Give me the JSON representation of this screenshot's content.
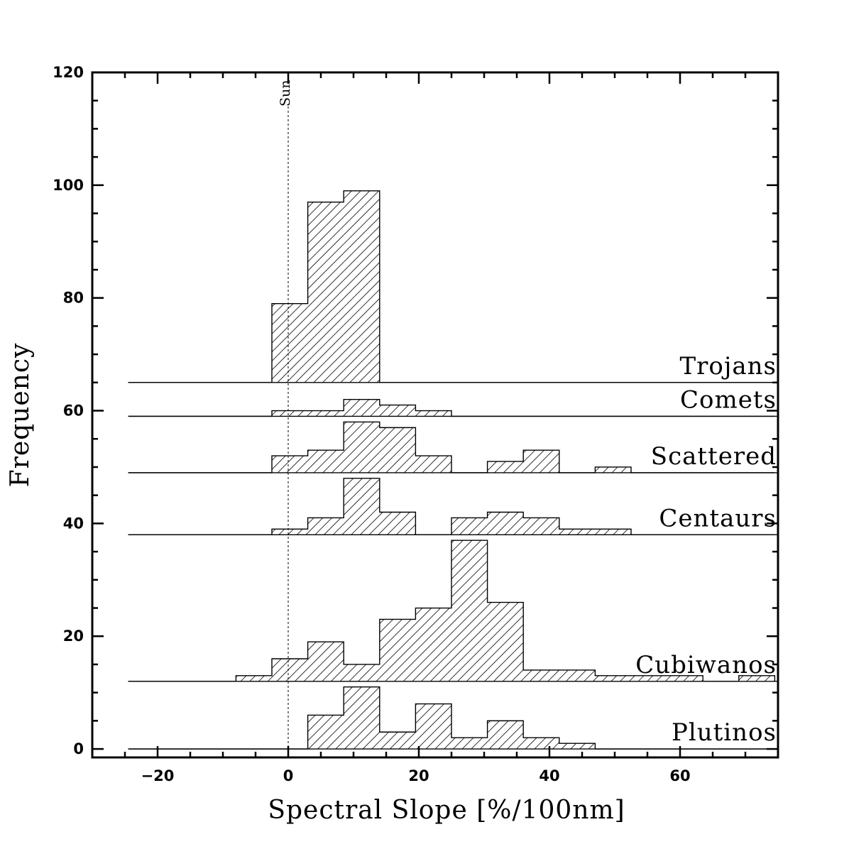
{
  "chart_data": {
    "type": "bar",
    "subtype": "stacked-offset-histogram",
    "xlabel": "Spectral Slope [%/100nm]",
    "ylabel": "Frequency",
    "xlim": [
      -30,
      75
    ],
    "ylim": [
      -1.5,
      120
    ],
    "x_ticks": [
      -20,
      0,
      20,
      40,
      60
    ],
    "y_ticks": [
      0,
      20,
      40,
      60,
      80,
      100,
      120
    ],
    "bin_width": 5.5,
    "x_start": -24.5,
    "grid": false,
    "fill_pattern": "diagonal-hatch",
    "reference_line": {
      "x": 0,
      "label": "Sun",
      "style": "dotted"
    },
    "bin_edges": [
      -24.5,
      -19,
      -13.5,
      -8,
      -2.5,
      3,
      8.5,
      14,
      19.5,
      25,
      30.5,
      36,
      41.5,
      47,
      52.5,
      58,
      63.5,
      69,
      74.5
    ],
    "series": [
      {
        "name": "Trojans",
        "baseline": 65,
        "values": [
          0,
          0,
          0,
          0,
          14,
          32,
          34,
          0,
          0,
          0,
          0,
          0,
          0,
          0,
          0,
          0,
          0,
          0
        ]
      },
      {
        "name": "Comets",
        "baseline": 59,
        "values": [
          0,
          0,
          0,
          0,
          1,
          1,
          3,
          2,
          1,
          0,
          0,
          0,
          0,
          0,
          0,
          0,
          0,
          0
        ]
      },
      {
        "name": "Scattered",
        "baseline": 49,
        "values": [
          0,
          0,
          0,
          0,
          3,
          4,
          9,
          8,
          3,
          0,
          2,
          4,
          0,
          1,
          0,
          0,
          0,
          0
        ]
      },
      {
        "name": "Centaurs",
        "baseline": 38,
        "values": [
          0,
          0,
          0,
          0,
          1,
          3,
          10,
          4,
          0,
          3,
          4,
          3,
          1,
          1,
          0,
          0,
          0,
          0
        ]
      },
      {
        "name": "Cubiwanos",
        "baseline": 12,
        "values": [
          0,
          0,
          0,
          1,
          4,
          7,
          3,
          11,
          13,
          25,
          14,
          2,
          2,
          1,
          1,
          1,
          0,
          1
        ]
      },
      {
        "name": "Plutinos",
        "baseline": 0,
        "values": [
          0,
          0,
          0,
          0,
          0,
          6,
          11,
          3,
          8,
          2,
          5,
          2,
          1,
          0,
          0,
          0,
          0,
          0
        ]
      }
    ]
  }
}
